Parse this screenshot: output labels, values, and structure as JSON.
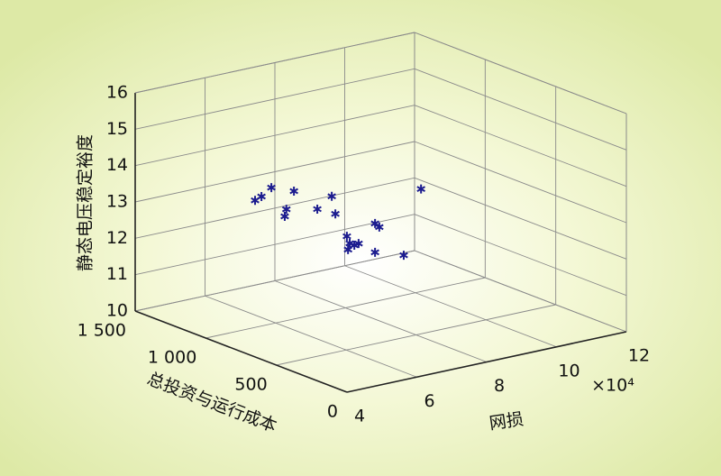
{
  "chart_data": {
    "type": "scatter3d",
    "x_label": "网损",
    "x_exponent_label": "×10⁴",
    "y_label": "总投资与运行成本",
    "z_label": "静态电压稳定裕度",
    "xlim": [
      4,
      12
    ],
    "xticks": [
      4,
      6,
      8,
      10,
      12
    ],
    "ylim": [
      0,
      1500
    ],
    "yticks": [
      0,
      500,
      {
        "value": 1000,
        "label": "1 000"
      },
      {
        "value": 1500,
        "label": "1 500"
      }
    ],
    "zlim": [
      10,
      16
    ],
    "zticks": [
      10,
      11,
      12,
      13,
      14,
      15,
      16
    ],
    "grid": true,
    "series": [
      {
        "color": "#1c1c8f",
        "x": [
          6.22,
          6.1,
          6.08,
          6.12,
          5.6,
          5.25,
          5.88,
          5.99,
          5.79,
          7.94,
          5.21,
          5.17,
          4.94,
          5.06,
          5.06,
          6.32,
          6.26,
          5.41,
          6.11
        ],
        "y": [
          1200,
          1125,
          1050,
          900,
          825,
          750,
          675,
          600,
          525,
          450,
          300,
          270,
          225,
          210,
          180,
          375,
          330,
          150,
          120
        ],
        "z": [
          13.03,
          13.27,
          13.63,
          13.75,
          13.47,
          13.46,
          13.64,
          14.08,
          13.75,
          14.1,
          13.59,
          13.45,
          13.39,
          13.51,
          13.6,
          13.6,
          13.58,
          13.33,
          13.15
        ]
      }
    ]
  }
}
